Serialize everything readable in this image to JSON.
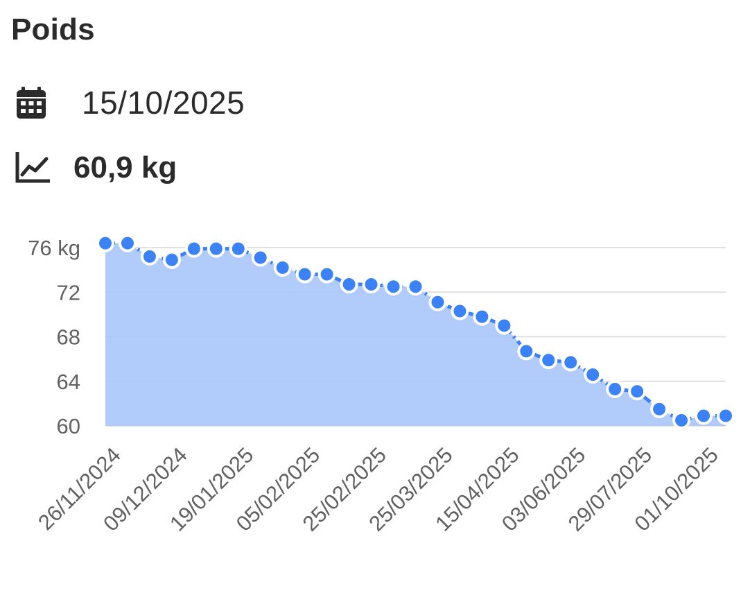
{
  "header": {
    "title": "Poids"
  },
  "summary": {
    "date": "15/10/2025",
    "date_icon": "calendar-icon",
    "weight": "60,9 kg",
    "weight_icon": "trend-chart-icon"
  },
  "colors": {
    "line": "#3b82f6",
    "area": "#a8c7fa",
    "grid": "#e0e0e0",
    "axis_text": "#616161"
  },
  "chart_data": {
    "type": "area",
    "title": "",
    "xlabel": "",
    "ylabel": "",
    "ylim": [
      60,
      76
    ],
    "y_ticks": [
      "76 kg",
      "72",
      "68",
      "64",
      "60"
    ],
    "y_tick_values": [
      76,
      72,
      68,
      64,
      60
    ],
    "x_tick_labels": [
      "26/11/2024",
      "09/12/2024",
      "19/01/2025",
      "05/02/2025",
      "25/02/2025",
      "25/03/2025",
      "15/04/2025",
      "03/06/2025",
      "29/07/2025",
      "01/10/2025"
    ],
    "grid": true,
    "series": [
      {
        "values": [
          76.4,
          76.4,
          75.2,
          74.9,
          75.9,
          75.9,
          75.9,
          75.1,
          74.2,
          73.6,
          73.6,
          72.7,
          72.7,
          72.5,
          72.5,
          71.1,
          70.3,
          69.8,
          69.0,
          66.7,
          65.9,
          65.7,
          64.6,
          63.3,
          63.1,
          61.5,
          60.5,
          60.9,
          60.9
        ]
      }
    ]
  }
}
